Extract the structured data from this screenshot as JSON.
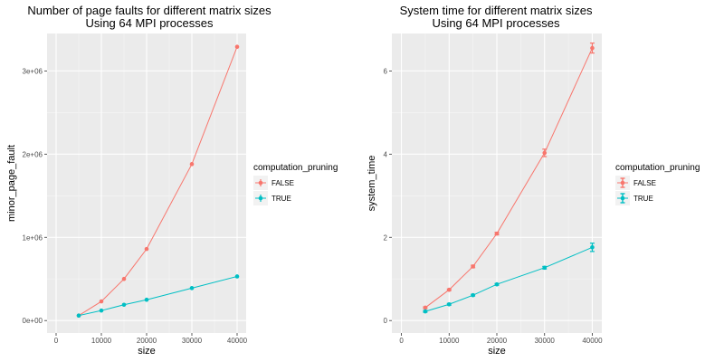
{
  "chart_data": [
    {
      "type": "line",
      "title": "Number of page faults for different matrix sizes",
      "subtitle": "Using 64 MPI processes",
      "xlabel": "size",
      "ylabel": "minor_page_fault",
      "xlim": [
        -2000,
        42000
      ],
      "ylim": [
        -150000,
        3450000
      ],
      "xticks": [
        0,
        10000,
        20000,
        30000,
        40000
      ],
      "xtick_labels": [
        "0",
        "10000",
        "20000",
        "30000",
        "40000"
      ],
      "yticks": [
        0,
        1000000,
        2000000,
        3000000
      ],
      "ytick_labels": [
        "0e+00",
        "1e+06",
        "2e+06",
        "3e+06"
      ],
      "grid": true,
      "legend_title": "computation_pruning",
      "legend_position": "right",
      "x": [
        5000,
        10000,
        15000,
        20000,
        30000,
        40000
      ],
      "series": [
        {
          "name": "FALSE",
          "color": "#F8766D",
          "values": [
            60000,
            230000,
            500000,
            860000,
            1880000,
            3290000
          ]
        },
        {
          "name": "TRUE",
          "color": "#00BFC4",
          "values": [
            60000,
            120000,
            190000,
            250000,
            390000,
            530000
          ]
        }
      ]
    },
    {
      "type": "line",
      "title": "System time for different matrix sizes",
      "subtitle": "Using 64 MPI processes",
      "xlabel": "size",
      "ylabel": "system_time",
      "xlim": [
        -2000,
        42000
      ],
      "ylim": [
        -0.3,
        6.9
      ],
      "xticks": [
        0,
        10000,
        20000,
        30000,
        40000
      ],
      "xtick_labels": [
        "0",
        "10000",
        "20000",
        "30000",
        "40000"
      ],
      "yticks": [
        0,
        2,
        4,
        6
      ],
      "ytick_labels": [
        "0",
        "2",
        "4",
        "6"
      ],
      "grid": true,
      "legend_title": "computation_pruning",
      "legend_position": "right",
      "x": [
        5000,
        10000,
        15000,
        20000,
        30000,
        40000
      ],
      "series": [
        {
          "name": "FALSE",
          "color": "#F8766D",
          "values": [
            0.31,
            0.74,
            1.3,
            2.09,
            4.03,
            6.55
          ],
          "errors": [
            0.02,
            0.02,
            0.03,
            0.03,
            0.09,
            0.12
          ]
        },
        {
          "name": "TRUE",
          "color": "#00BFC4",
          "values": [
            0.22,
            0.39,
            0.61,
            0.87,
            1.27,
            1.76
          ],
          "errors": [
            0.02,
            0.02,
            0.02,
            0.02,
            0.03,
            0.1
          ]
        }
      ]
    }
  ]
}
